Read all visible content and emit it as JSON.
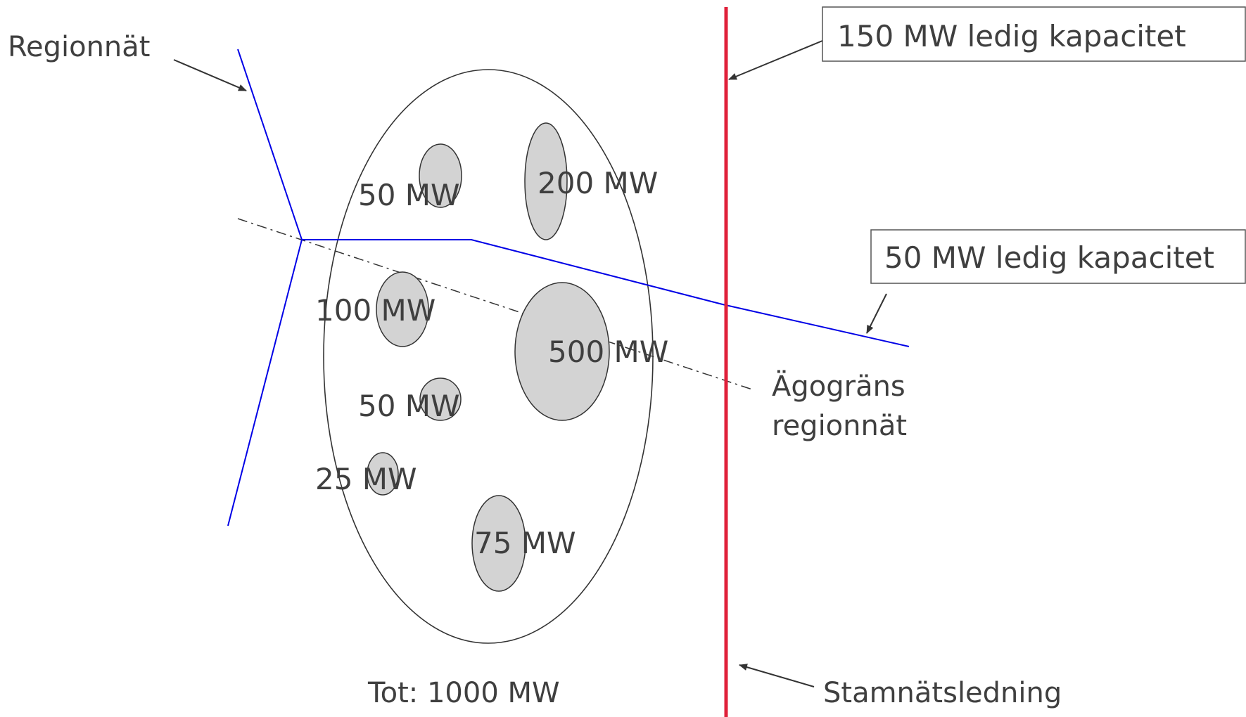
{
  "labels": {
    "regionnat": "Regionnät",
    "capacity_top": "150 MW ledig kapacitet",
    "capacity_mid": "50 MW ledig kapacitet",
    "agograns_line1": "Ägogräns",
    "agograns_line2": "regionnät",
    "stamnat": "Stamnätsledning",
    "total": "Tot: 1000 MW"
  },
  "loads": [
    {
      "label": "50 MW",
      "value_mw": 50
    },
    {
      "label": "200 MW",
      "value_mw": 200
    },
    {
      "label": "100 MW",
      "value_mw": 100
    },
    {
      "label": "500 MW",
      "value_mw": 500
    },
    {
      "label": "50 MW",
      "value_mw": 50
    },
    {
      "label": "25 MW",
      "value_mw": 25
    },
    {
      "label": "75 MW",
      "value_mw": 75
    }
  ],
  "colors": {
    "regional_grid": "#0000e6",
    "transmission_line": "#e0203a",
    "load_fill": "#d3d3d3",
    "text": "#3f3f3f"
  }
}
